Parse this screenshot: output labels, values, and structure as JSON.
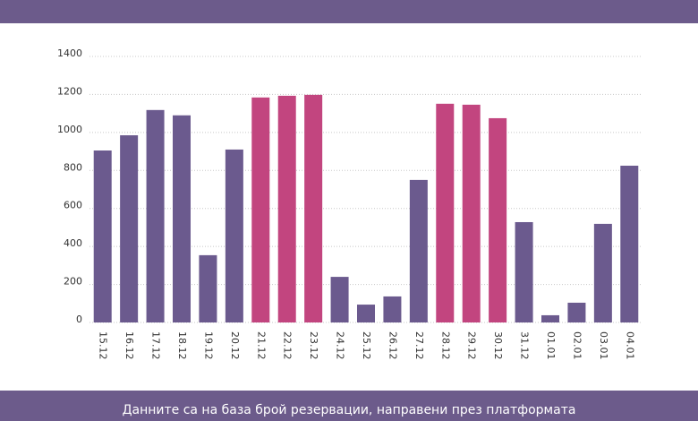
{
  "chart_data": {
    "type": "bar",
    "categories": [
      "15.12",
      "16.12",
      "17.12",
      "18.12",
      "19.12",
      "20.12",
      "21.12",
      "22.12",
      "23.12",
      "24.12",
      "25.12",
      "26.12",
      "27.12",
      "28.12",
      "29.12",
      "30.12",
      "31.12",
      "01.01",
      "02.01",
      "03.01",
      "04.01"
    ],
    "values": [
      905,
      985,
      1118,
      1090,
      354,
      910,
      1184,
      1193,
      1198,
      240,
      94,
      137,
      750,
      1151,
      1146,
      1075,
      528,
      38,
      104,
      519,
      825
    ],
    "colors": [
      "#6b5a8e",
      "#6b5a8e",
      "#6b5a8e",
      "#6b5a8e",
      "#6b5a8e",
      "#6b5a8e",
      "#c2457f",
      "#c2457f",
      "#c2457f",
      "#6b5a8e",
      "#6b5a8e",
      "#6b5a8e",
      "#6b5a8e",
      "#c2457f",
      "#c2457f",
      "#c2457f",
      "#6b5a8e",
      "#6b5a8e",
      "#6b5a8e",
      "#6b5a8e",
      "#6b5a8e"
    ],
    "ylim": [
      0,
      1400
    ],
    "yticks": [
      0,
      200,
      400,
      600,
      800,
      1000,
      1200,
      1400
    ],
    "grid": true,
    "footnote": "Данните са на база брой резервации, направени през платформата"
  }
}
